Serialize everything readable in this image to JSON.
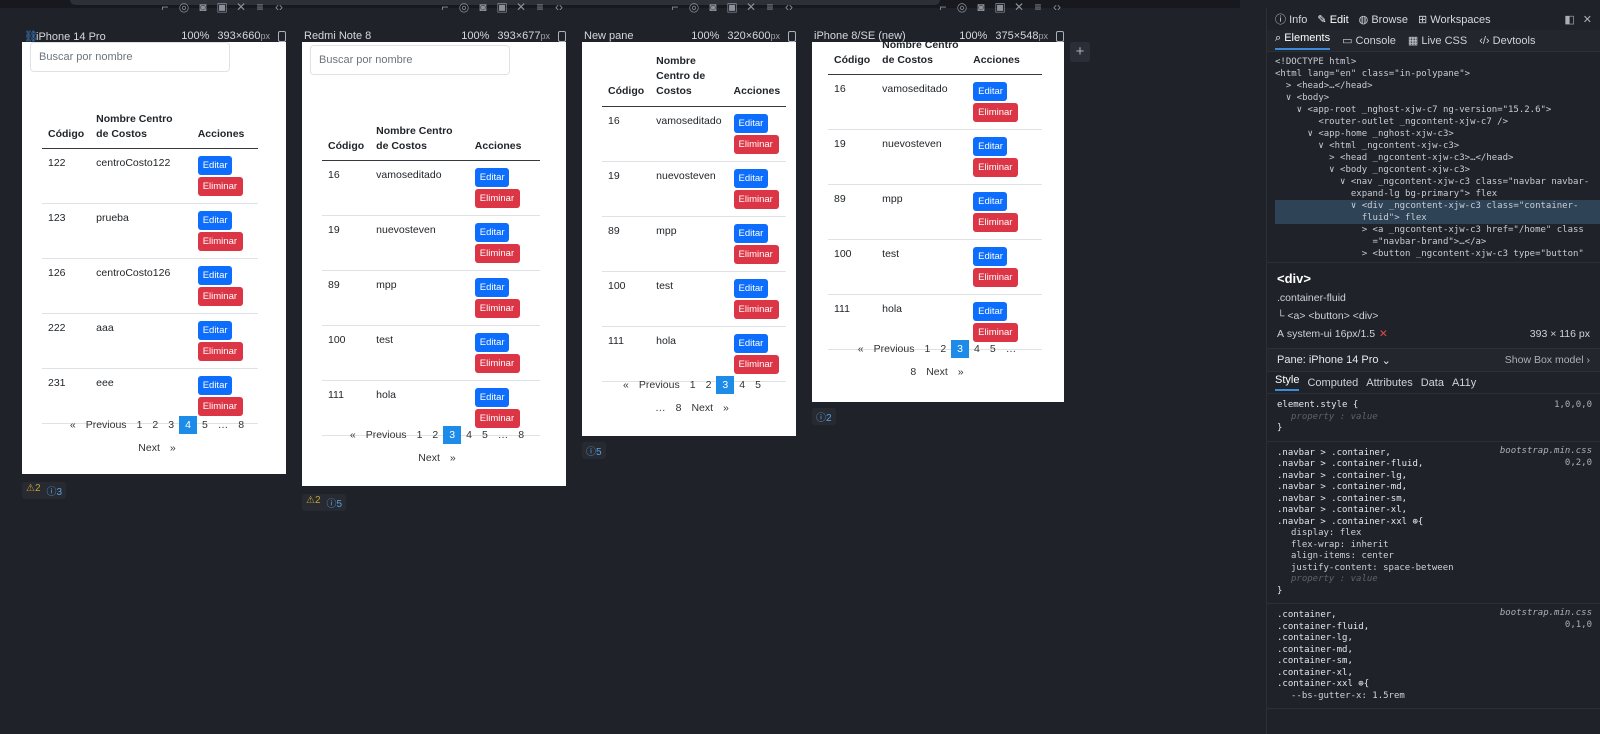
{
  "panes": [
    {
      "name": "iPhone 14 Pro",
      "zoom": "100%",
      "dims": "393×660",
      "unit": "px",
      "warn_count": "2",
      "info_count": "3",
      "search_placeholder": "Buscar por nombre",
      "headers": [
        "Código",
        "Nombre Centro de Costos",
        "Acciones"
      ],
      "rows": [
        [
          "122",
          "centroCosto122"
        ],
        [
          "123",
          "prueba"
        ],
        [
          "126",
          "centroCosto126"
        ],
        [
          "222",
          "aaa"
        ],
        [
          "231",
          "eee"
        ]
      ],
      "pager": [
        "«",
        "Previous",
        "1",
        "2",
        "3",
        "4",
        "5",
        "…",
        "8",
        "Next",
        "»"
      ],
      "active_page": "4"
    },
    {
      "name": "Redmi Note 8",
      "zoom": "100%",
      "dims": "393×677",
      "unit": "px",
      "warn_count": "2",
      "info_count": "5",
      "search_placeholder": "Buscar por nombre",
      "headers": [
        "Código",
        "Nombre Centro de Costos",
        "Acciones"
      ],
      "rows": [
        [
          "16",
          "vamoseditado"
        ],
        [
          "19",
          "nuevosteven"
        ],
        [
          "89",
          "mpp"
        ],
        [
          "100",
          "test"
        ],
        [
          "111",
          "hola"
        ]
      ],
      "pager": [
        "«",
        "Previous",
        "1",
        "2",
        "3",
        "4",
        "5",
        "…",
        "8",
        "Next",
        "»"
      ],
      "active_page": "3"
    },
    {
      "name": "New pane",
      "zoom": "100%",
      "dims": "320×600",
      "unit": "px",
      "info_count": "5",
      "headers": [
        "Código",
        "Nombre Centro de Costos",
        "Acciones"
      ],
      "rows": [
        [
          "16",
          "vamoseditado"
        ],
        [
          "19",
          "nuevosteven"
        ],
        [
          "89",
          "mpp"
        ],
        [
          "100",
          "test"
        ],
        [
          "111",
          "hola"
        ]
      ],
      "pager": [
        "«",
        "Previous",
        "1",
        "2",
        "3",
        "4",
        "5",
        "…",
        "8",
        "Next",
        "»"
      ],
      "active_page": "3"
    },
    {
      "name": "iPhone 8/SE (new)",
      "zoom": "100%",
      "dims": "375×548",
      "unit": "px",
      "info_count": "2",
      "headers": [
        "Código",
        "Nombre Centro de Costos",
        "Acciones"
      ],
      "rows": [
        [
          "16",
          "vamoseditado"
        ],
        [
          "19",
          "nuevosteven"
        ],
        [
          "89",
          "mpp"
        ],
        [
          "100",
          "test"
        ],
        [
          "111",
          "hola"
        ]
      ],
      "pager": [
        "«",
        "Previous",
        "1",
        "2",
        "3",
        "4",
        "5",
        "…",
        "8",
        "Next",
        "»"
      ],
      "active_page": "3"
    }
  ],
  "buttons": {
    "edit": "Editar",
    "delete": "Eliminar"
  },
  "devtools": {
    "top_tabs": [
      "Info",
      "Edit",
      "Browse",
      "Workspaces"
    ],
    "panel_tabs": [
      "Elements",
      "Console",
      "Live CSS",
      "Devtools"
    ],
    "dom_lines": [
      "<!DOCTYPE html>",
      "<html lang=\"en\" class=\"in-polypane\">",
      "  > <head>…</head>",
      "  ∨ <body>",
      "    ∨ <app-root _nghost-xjw-c7 ng-version=\"15.2.6\">",
      "        <router-outlet _ngcontent-xjw-c7 />",
      "      ∨ <app-home _nghost-xjw-c3>",
      "        ∨ <html _ngcontent-xjw-c3>",
      "          > <head _ngcontent-xjw-c3>…</head>",
      "          ∨ <body _ngcontent-xjw-c3>",
      "            ∨ <nav _ngcontent-xjw-c3 class=\"navbar navbar-",
      "              expand-lg bg-primary\"> flex",
      "              ∨ <div _ngcontent-xjw-c3 class=\"container-",
      "                fluid\"> flex",
      "                > <a _ngcontent-xjw-c3 href=\"/home\" class",
      "                  =\"navbar-brand\">…</a>",
      "                > <button _ngcontent-xjw-c3 type=\"button\""
    ],
    "selected_tag": "<div>",
    "selected_class": ".container-fluid",
    "selected_children": "└ <a> <button> <div>",
    "font_info": "system-ui 16px/1.5",
    "box_size": "393 × 116 px",
    "pane_label": "Pane:",
    "pane_value": "iPhone 14 Pro",
    "show_box_model": "Show Box model",
    "style_tabs": [
      "Style",
      "Computed",
      "Attributes",
      "Data",
      "A11y"
    ],
    "element_style": "element.style {",
    "element_spec": "1,0,0,0",
    "prop_placeholder": "property       :  value",
    "rule1_source": "bootstrap.min.css",
    "rule1_spec": "0,2,0",
    "rule1_selectors": [
      ".navbar > .container,",
      ".navbar > .container-fluid,",
      ".navbar > .container-lg,",
      ".navbar > .container-md,",
      ".navbar > .container-sm,",
      ".navbar > .container-xl,",
      ".navbar > .container-xxl ⊕{"
    ],
    "rule1_props": [
      "display: flex",
      "flex-wrap: inherit",
      "align-items: center",
      "justify-content: space-between"
    ],
    "rule2_source": "bootstrap.min.css",
    "rule2_spec": "0,1,0",
    "rule2_selectors": [
      ".container,",
      ".container-fluid,",
      ".container-lg,",
      ".container-md,",
      ".container-sm,",
      ".container-xl,",
      ".container-xxl ⊕{"
    ],
    "rule2_props": [
      "--bs-gutter-x: 1.5rem"
    ]
  }
}
